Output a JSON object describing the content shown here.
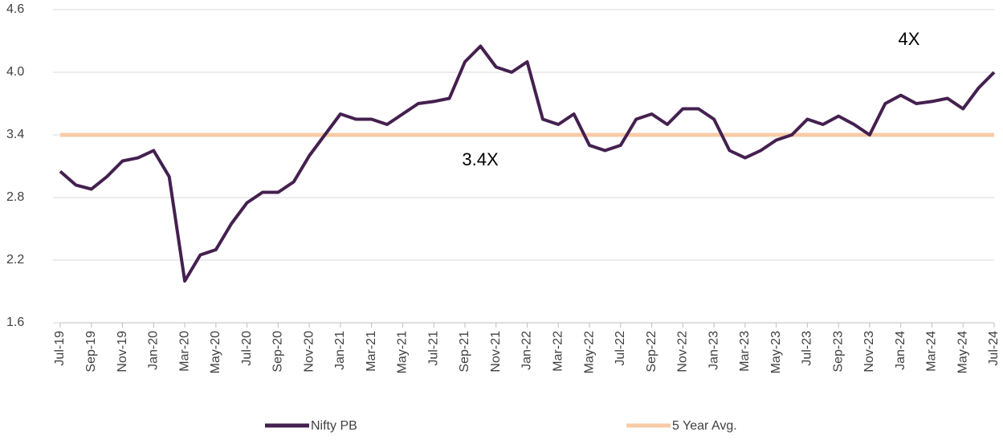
{
  "chart_data": {
    "type": "line",
    "categories": [
      "Jul-19",
      null,
      "Sep-19",
      null,
      "Nov-19",
      null,
      "Jan-20",
      null,
      "Mar-20",
      null,
      "May-20",
      null,
      "Jul-20",
      null,
      "Sep-20",
      null,
      "Nov-20",
      null,
      "Jan-21",
      null,
      "Mar-21",
      null,
      "May-21",
      null,
      "Jul-21",
      null,
      "Sep-21",
      null,
      "Nov-21",
      null,
      "Jan-22",
      null,
      "Mar-22",
      null,
      "May-22",
      null,
      "Jul-22",
      null,
      "Sep-22",
      null,
      "Nov-22",
      null,
      "Jan-23",
      null,
      "Mar-23",
      null,
      "May-23",
      null,
      "Jul-23",
      null,
      "Sep-23",
      null,
      "Nov-23",
      null,
      "Jan-24",
      null,
      "Mar-24",
      null,
      "May-24",
      null,
      "Jul-24"
    ],
    "series": [
      {
        "name": "Nifty PB",
        "color": "#44204f",
        "width": 4,
        "values": [
          3.05,
          2.92,
          2.88,
          3.0,
          3.15,
          3.18,
          3.25,
          3.0,
          2.0,
          2.25,
          2.3,
          2.55,
          2.75,
          2.85,
          2.85,
          2.95,
          3.2,
          3.4,
          3.6,
          3.55,
          3.55,
          3.5,
          3.6,
          3.7,
          3.72,
          3.75,
          4.1,
          4.25,
          4.05,
          4.0,
          4.1,
          3.55,
          3.5,
          3.6,
          3.3,
          3.25,
          3.3,
          3.55,
          3.6,
          3.5,
          3.65,
          3.65,
          3.55,
          3.25,
          3.18,
          3.25,
          3.35,
          3.4,
          3.55,
          3.5,
          3.58,
          3.5,
          3.4,
          3.7,
          3.78,
          3.7,
          3.72,
          3.75,
          3.65,
          3.85,
          4.0
        ]
      },
      {
        "name": "5 Year Avg.",
        "color": "#f8cba7",
        "width": 5,
        "values": [
          3.4,
          3.4,
          3.4,
          3.4,
          3.4,
          3.4,
          3.4,
          3.4,
          3.4,
          3.4,
          3.4,
          3.4,
          3.4,
          3.4,
          3.4,
          3.4,
          3.4,
          3.4,
          3.4,
          3.4,
          3.4,
          3.4,
          3.4,
          3.4,
          3.4,
          3.4,
          3.4,
          3.4,
          3.4,
          3.4,
          3.4,
          3.4,
          3.4,
          3.4,
          3.4,
          3.4,
          3.4,
          3.4,
          3.4,
          3.4,
          3.4,
          3.4,
          3.4,
          3.4,
          3.4,
          3.4,
          3.4,
          3.4,
          3.4,
          3.4,
          3.4,
          3.4,
          3.4,
          3.4,
          3.4,
          3.4,
          3.4,
          3.4,
          3.4,
          3.4,
          3.4
        ]
      }
    ],
    "annotations": [
      "3.4X",
      "4X"
    ],
    "ylim": [
      1.6,
      4.6
    ],
    "yticks": [
      1.6,
      2.2,
      2.8,
      3.4,
      {
        "value": 4,
        "label": "4.0"
      },
      4.6
    ],
    "grid": true,
    "legend": "bottom"
  }
}
